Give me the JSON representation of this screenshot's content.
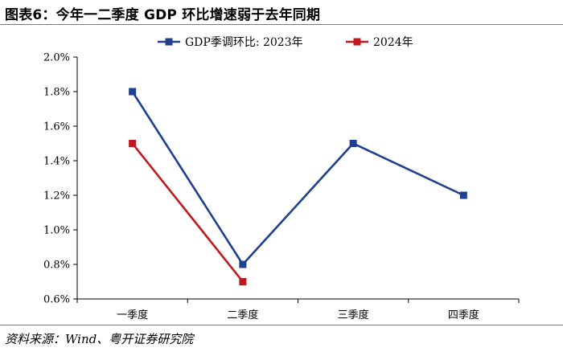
{
  "figure": {
    "title": "图表6：今年一二季度 GDP 环比增速弱于去年同期",
    "source": "资料来源：Wind、粤开证券研究院"
  },
  "chart_data": {
    "type": "line",
    "categories": [
      "一季度",
      "二季度",
      "三季度",
      "四季度"
    ],
    "y_tick_labels": [
      "0.6%",
      "0.8%",
      "1.0%",
      "1.2%",
      "1.4%",
      "1.6%",
      "1.8%",
      "2.0%"
    ],
    "ylim": [
      0.6,
      2.0
    ],
    "y_unit": "%",
    "grid": false,
    "legend_position": "top",
    "series": [
      {
        "name": "GDP季调环比: 2023年",
        "color": "#1f3f8f",
        "values": [
          1.8,
          0.8,
          1.5,
          1.2
        ]
      },
      {
        "name": "2024年",
        "color": "#c0181f",
        "values": [
          1.5,
          0.7,
          null,
          null
        ]
      }
    ]
  }
}
